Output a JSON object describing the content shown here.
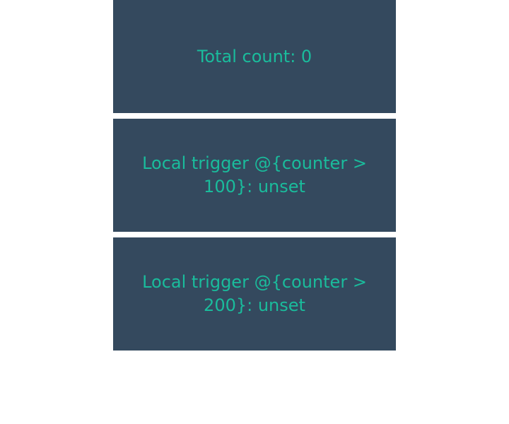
{
  "cards": [
    {
      "text": "Total count: 0"
    },
    {
      "text": "Local trigger @{counter > 100}: unset"
    },
    {
      "text": "Local trigger @{counter > 200}: unset"
    }
  ],
  "colors": {
    "card_background": "#34495e",
    "text": "#1abc9c",
    "page_background": "#ffffff"
  }
}
